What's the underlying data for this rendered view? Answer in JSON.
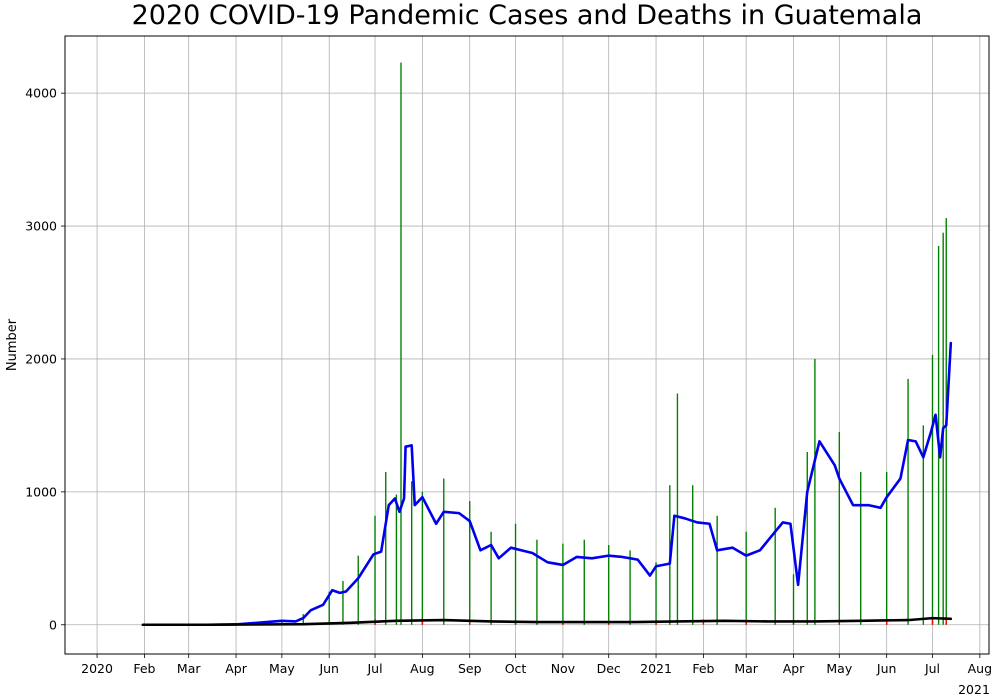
{
  "chart_data": {
    "type": "bar",
    "title": "2020 COVID-19 Pandemic Cases and Deaths in Guatemala",
    "xlabel": "",
    "ylabel": "Number",
    "ylim": [
      -220,
      4430
    ],
    "xlim": [
      "2019-12-11",
      "2021-08-07"
    ],
    "grid": true,
    "x_ticks": [
      {
        "date": "2020-01-01",
        "label": "2020"
      },
      {
        "date": "2020-02-01",
        "label": "Feb"
      },
      {
        "date": "2020-03-01",
        "label": "Mar"
      },
      {
        "date": "2020-04-01",
        "label": "Apr"
      },
      {
        "date": "2020-05-01",
        "label": "May"
      },
      {
        "date": "2020-06-01",
        "label": "Jun"
      },
      {
        "date": "2020-07-01",
        "label": "Jul"
      },
      {
        "date": "2020-08-01",
        "label": "Aug"
      },
      {
        "date": "2020-09-01",
        "label": "Sep"
      },
      {
        "date": "2020-10-01",
        "label": "Oct"
      },
      {
        "date": "2020-11-01",
        "label": "Nov"
      },
      {
        "date": "2020-12-01",
        "label": "Dec"
      },
      {
        "date": "2021-01-01",
        "label": "2021"
      },
      {
        "date": "2021-02-01",
        "label": "Feb"
      },
      {
        "date": "2021-03-01",
        "label": "Mar"
      },
      {
        "date": "2021-04-01",
        "label": "Apr"
      },
      {
        "date": "2021-05-01",
        "label": "May"
      },
      {
        "date": "2021-06-01",
        "label": "Jun"
      },
      {
        "date": "2021-07-01",
        "label": "Jul"
      },
      {
        "date": "2021-08-01",
        "label": "Aug"
      }
    ],
    "x_offset_label": "2021",
    "y_ticks": [
      0,
      1000,
      2000,
      3000,
      4000
    ],
    "series": [
      {
        "kind": "bar",
        "color": "#008000",
        "points": [
          [
            "2020-03-15",
            2
          ],
          [
            "2020-04-01",
            5
          ],
          [
            "2020-04-15",
            15
          ],
          [
            "2020-05-01",
            30
          ],
          [
            "2020-05-15",
            80
          ],
          [
            "2020-06-01",
            250
          ],
          [
            "2020-06-10",
            330
          ],
          [
            "2020-06-20",
            520
          ],
          [
            "2020-07-01",
            820
          ],
          [
            "2020-07-08",
            1150
          ],
          [
            "2020-07-15",
            980
          ],
          [
            "2020-07-18",
            4230
          ],
          [
            "2020-07-25",
            1080
          ],
          [
            "2020-08-01",
            1000
          ],
          [
            "2020-08-15",
            1100
          ],
          [
            "2020-09-01",
            930
          ],
          [
            "2020-09-15",
            700
          ],
          [
            "2020-10-01",
            760
          ],
          [
            "2020-10-15",
            640
          ],
          [
            "2020-11-01",
            610
          ],
          [
            "2020-11-15",
            640
          ],
          [
            "2020-12-01",
            600
          ],
          [
            "2020-12-15",
            560
          ],
          [
            "2021-01-01",
            470
          ],
          [
            "2021-01-10",
            1050
          ],
          [
            "2021-01-15",
            1740
          ],
          [
            "2021-01-25",
            1050
          ],
          [
            "2021-02-10",
            820
          ],
          [
            "2021-03-01",
            700
          ],
          [
            "2021-03-20",
            880
          ],
          [
            "2021-04-01",
            380
          ],
          [
            "2021-04-10",
            1300
          ],
          [
            "2021-04-15",
            2000
          ],
          [
            "2021-05-01",
            1450
          ],
          [
            "2021-05-15",
            1150
          ],
          [
            "2021-06-01",
            1150
          ],
          [
            "2021-06-15",
            1850
          ],
          [
            "2021-06-25",
            1500
          ],
          [
            "2021-07-01",
            2030
          ],
          [
            "2021-07-05",
            2850
          ],
          [
            "2021-07-08",
            2950
          ],
          [
            "2021-07-10",
            3060
          ]
        ]
      },
      {
        "kind": "bar",
        "color": "#ff0000",
        "points": [
          [
            "2020-06-01",
            20
          ],
          [
            "2020-07-01",
            40
          ],
          [
            "2020-08-01",
            45
          ],
          [
            "2020-09-01",
            30
          ],
          [
            "2020-10-01",
            25
          ],
          [
            "2020-11-01",
            25
          ],
          [
            "2020-12-01",
            30
          ],
          [
            "2021-01-01",
            35
          ],
          [
            "2021-02-01",
            40
          ],
          [
            "2021-03-01",
            30
          ],
          [
            "2021-04-01",
            25
          ],
          [
            "2021-05-01",
            40
          ],
          [
            "2021-06-01",
            40
          ],
          [
            "2021-07-01",
            55
          ],
          [
            "2021-07-10",
            60
          ]
        ]
      },
      {
        "kind": "line",
        "color": "#0000ee",
        "points": [
          [
            "2020-03-13",
            0
          ],
          [
            "2020-04-01",
            3
          ],
          [
            "2020-04-15",
            15
          ],
          [
            "2020-05-01",
            30
          ],
          [
            "2020-05-10",
            25
          ],
          [
            "2020-05-15",
            50
          ],
          [
            "2020-05-20",
            110
          ],
          [
            "2020-05-28",
            150
          ],
          [
            "2020-06-03",
            260
          ],
          [
            "2020-06-08",
            240
          ],
          [
            "2020-06-12",
            250
          ],
          [
            "2020-06-20",
            350
          ],
          [
            "2020-06-30",
            530
          ],
          [
            "2020-07-05",
            550
          ],
          [
            "2020-07-10",
            900
          ],
          [
            "2020-07-14",
            950
          ],
          [
            "2020-07-17",
            850
          ],
          [
            "2020-07-20",
            950
          ],
          [
            "2020-07-21",
            1340
          ],
          [
            "2020-07-25",
            1350
          ],
          [
            "2020-07-27",
            900
          ],
          [
            "2020-08-01",
            960
          ],
          [
            "2020-08-10",
            760
          ],
          [
            "2020-08-15",
            850
          ],
          [
            "2020-08-25",
            840
          ],
          [
            "2020-09-01",
            780
          ],
          [
            "2020-09-08",
            560
          ],
          [
            "2020-09-15",
            600
          ],
          [
            "2020-09-20",
            500
          ],
          [
            "2020-09-28",
            580
          ],
          [
            "2020-10-05",
            560
          ],
          [
            "2020-10-12",
            540
          ],
          [
            "2020-10-22",
            470
          ],
          [
            "2020-11-01",
            450
          ],
          [
            "2020-11-10",
            510
          ],
          [
            "2020-11-20",
            500
          ],
          [
            "2020-12-01",
            520
          ],
          [
            "2020-12-10",
            510
          ],
          [
            "2020-12-20",
            490
          ],
          [
            "2020-12-28",
            370
          ],
          [
            "2021-01-01",
            440
          ],
          [
            "2021-01-10",
            460
          ],
          [
            "2021-01-13",
            820
          ],
          [
            "2021-01-20",
            800
          ],
          [
            "2021-01-28",
            770
          ],
          [
            "2021-02-05",
            760
          ],
          [
            "2021-02-10",
            560
          ],
          [
            "2021-02-20",
            580
          ],
          [
            "2021-03-01",
            520
          ],
          [
            "2021-03-10",
            560
          ],
          [
            "2021-03-20",
            700
          ],
          [
            "2021-03-25",
            770
          ],
          [
            "2021-03-30",
            760
          ],
          [
            "2021-04-04",
            300
          ],
          [
            "2021-04-10",
            1000
          ],
          [
            "2021-04-18",
            1380
          ],
          [
            "2021-04-28",
            1200
          ],
          [
            "2021-05-01",
            1100
          ],
          [
            "2021-05-10",
            900
          ],
          [
            "2021-05-20",
            900
          ],
          [
            "2021-05-28",
            880
          ],
          [
            "2021-06-01",
            960
          ],
          [
            "2021-06-10",
            1100
          ],
          [
            "2021-06-15",
            1390
          ],
          [
            "2021-06-20",
            1380
          ],
          [
            "2021-06-25",
            1260
          ],
          [
            "2021-06-30",
            1450
          ],
          [
            "2021-07-03",
            1580
          ],
          [
            "2021-07-06",
            1260
          ],
          [
            "2021-07-08",
            1480
          ],
          [
            "2021-07-10",
            1500
          ],
          [
            "2021-07-13",
            2120
          ]
        ]
      },
      {
        "kind": "line",
        "color": "#000000",
        "points": [
          [
            "2020-01-31",
            0
          ],
          [
            "2020-03-15",
            0
          ],
          [
            "2020-05-15",
            4
          ],
          [
            "2020-06-15",
            15
          ],
          [
            "2020-07-15",
            30
          ],
          [
            "2020-08-15",
            35
          ],
          [
            "2020-09-15",
            25
          ],
          [
            "2020-10-15",
            20
          ],
          [
            "2020-11-15",
            20
          ],
          [
            "2020-12-15",
            20
          ],
          [
            "2021-01-15",
            25
          ],
          [
            "2021-02-15",
            30
          ],
          [
            "2021-03-15",
            25
          ],
          [
            "2021-04-15",
            25
          ],
          [
            "2021-05-15",
            30
          ],
          [
            "2021-06-15",
            35
          ],
          [
            "2021-07-01",
            50
          ],
          [
            "2021-07-13",
            45
          ]
        ]
      }
    ]
  }
}
